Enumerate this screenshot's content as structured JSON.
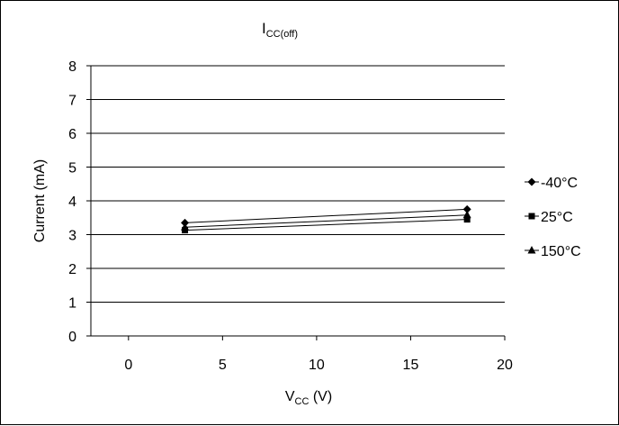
{
  "chart_data": {
    "type": "line",
    "title": "I",
    "title_sub": "CC(off)",
    "xlabel": "V",
    "xlabel_sub": "CC",
    "xlabel_unit": " (V)",
    "ylabel": "Current (mA)",
    "xlim": [
      -2,
      20
    ],
    "ylim": [
      0,
      8
    ],
    "x_ticks": [
      0,
      5,
      10,
      15,
      20
    ],
    "y_ticks": [
      0,
      1,
      2,
      3,
      4,
      5,
      6,
      7,
      8
    ],
    "grid": "horizontal",
    "legend_position": "right",
    "series": [
      {
        "name": "-40°C",
        "marker": "diamond",
        "x": [
          3,
          18
        ],
        "y": [
          3.35,
          3.75
        ]
      },
      {
        "name": "25°C",
        "marker": "square",
        "x": [
          3,
          18
        ],
        "y": [
          3.13,
          3.45
        ]
      },
      {
        "name": "150°C",
        "marker": "triangle",
        "x": [
          3,
          18
        ],
        "y": [
          3.22,
          3.58
        ]
      }
    ]
  }
}
